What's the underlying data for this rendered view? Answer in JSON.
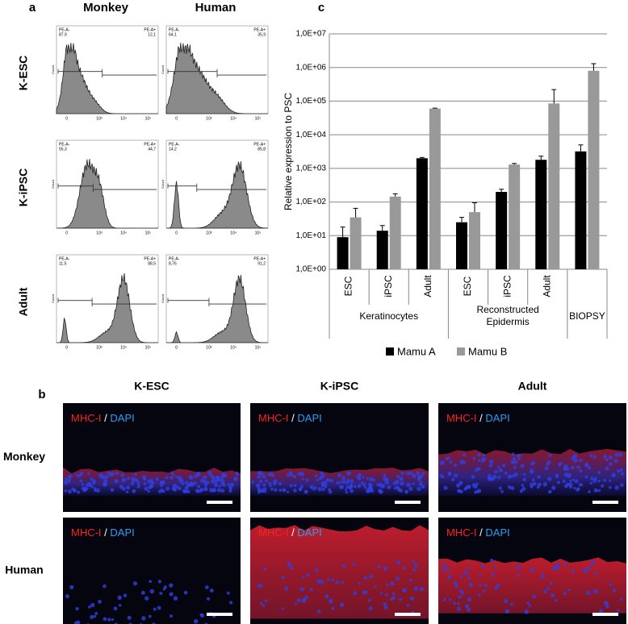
{
  "panel_a": {
    "label": "a",
    "columns": [
      "Monkey",
      "Human"
    ],
    "rows": [
      "K-ESC",
      "K-iPSC",
      "Adult"
    ],
    "gate_negative": "PE-A-",
    "gate_positive": "PE-A+",
    "count_label": "Count",
    "x_ticks": [
      "0",
      "10³",
      "10⁴",
      "10⁵"
    ],
    "percentages": [
      [
        {
          "negative": "87,9",
          "positive": "12,1"
        },
        {
          "negative": "64,1",
          "positive": "35,9"
        }
      ],
      [
        {
          "negative": "55,3",
          "positive": "44,7"
        },
        {
          "negative": "14,2",
          "positive": "85,8"
        }
      ],
      [
        {
          "negative": "11,5",
          "positive": "88,5"
        },
        {
          "negative": "8,76",
          "positive": "91,2"
        }
      ]
    ]
  },
  "panel_b": {
    "label": "b",
    "columns": [
      "K-ESC",
      "K-iPSC",
      "Adult"
    ],
    "rows": [
      "Monkey",
      "Human"
    ],
    "marker": "MHC-I",
    "separator": "/",
    "counterstain": "DAPI"
  },
  "chart_data": {
    "type": "bar",
    "panel_label": "c",
    "y_label": "Relative expression to PSC",
    "log_scale": true,
    "grid": true,
    "legend": "bottom",
    "ylim": [
      1,
      10000000
    ],
    "yticks": [
      {
        "value": 1,
        "label": "1,0E+00"
      },
      {
        "value": 10,
        "label": "1,0E+01"
      },
      {
        "value": 100,
        "label": "1,0E+02"
      },
      {
        "value": 1000,
        "label": "1,0E+03"
      },
      {
        "value": 10000,
        "label": "1,0E+04"
      },
      {
        "value": 100000,
        "label": "1,0E+05"
      },
      {
        "value": 1000000,
        "label": "1,0E+06"
      },
      {
        "value": 10000000,
        "label": "1,0E+07"
      }
    ],
    "categories": [
      "ESC",
      "iPSC",
      "Adult",
      "ESC",
      "iPSC",
      "Adult",
      null
    ],
    "groups": [
      [
        "Keratinocytes"
      ],
      [
        "Reconstructed",
        "Epidermis"
      ],
      [
        "BIOPSY"
      ]
    ],
    "series": [
      {
        "name": "Mamu A",
        "color": "#000000",
        "values": [
          9,
          14,
          2000,
          25,
          200,
          1800,
          3200
        ],
        "errors": [
          9,
          6,
          100,
          10,
          40,
          500,
          1800
        ]
      },
      {
        "name": "Mamu B",
        "color": "#999999",
        "values": [
          35,
          145,
          60000,
          50,
          1300,
          85000,
          800000
        ],
        "errors": [
          30,
          30,
          2000,
          45,
          100,
          135000,
          500000
        ]
      }
    ]
  }
}
